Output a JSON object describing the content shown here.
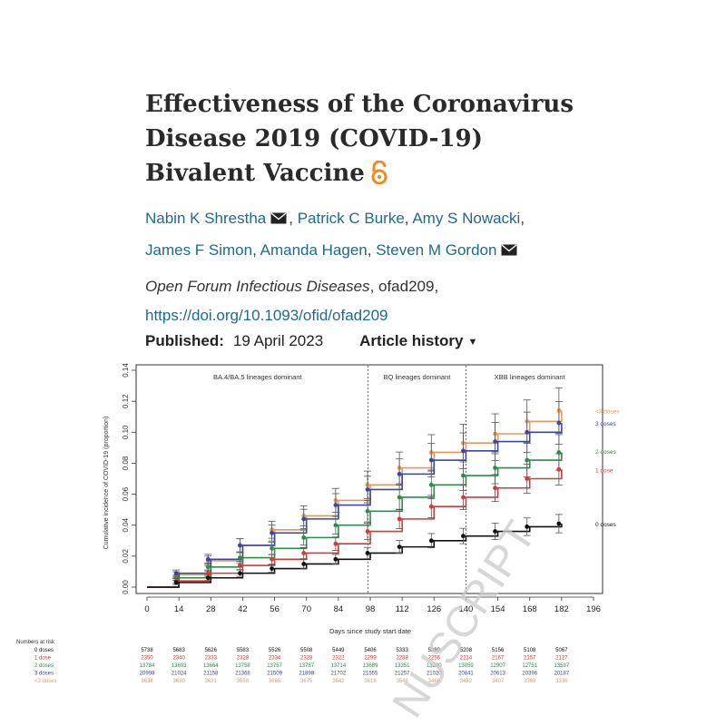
{
  "article": {
    "title_line1": "Effectiveness of the Coronavirus",
    "title_line2": "Disease 2019 (COVID-19)",
    "title_line3": "Bivalent Vaccine",
    "open_access_icon": "open-access-lock-icon",
    "open_access_color": "#f08a24",
    "link_color": "#1d6a8f",
    "authors": [
      {
        "name": "Nabin K Shrestha",
        "corresponding": true
      },
      {
        "name": "Patrick C Burke",
        "corresponding": false
      },
      {
        "name": "Amy S Nowacki",
        "corresponding": false
      },
      {
        "name": "James F Simon",
        "corresponding": false
      },
      {
        "name": "Amanda Hagen",
        "corresponding": false
      },
      {
        "name": "Steven M Gordon",
        "corresponding": true
      }
    ],
    "journal": "Open Forum Infectious Diseases",
    "article_id": ", ofad209,",
    "doi": "https://doi.org/10.1093/ofid/ofad209",
    "published_label": "Published:",
    "published_date": "19 April 2023",
    "article_history_label": "Article history",
    "watermark": "NUSCRIPT"
  },
  "chart_data": {
    "type": "line",
    "title": "",
    "xlabel": "Days since study start date",
    "ylabel": "Cumulative incidence of COVID-19 (proportion)",
    "xlim": [
      0,
      196
    ],
    "ylim": [
      0,
      0.14
    ],
    "xticks": [
      0,
      14,
      28,
      42,
      56,
      70,
      84,
      98,
      112,
      126,
      140,
      154,
      168,
      182,
      196
    ],
    "yticks": [
      0.0,
      0.02,
      0.04,
      0.06,
      0.08,
      0.1,
      0.12,
      0.14
    ],
    "grid": false,
    "periods": [
      {
        "label": "BA.4/BA.5 lineages dominant",
        "start": 0,
        "end": 97
      },
      {
        "label": "BQ lineages dominant",
        "start": 97,
        "end": 140
      },
      {
        "label": "XBB lineages dominant",
        "start": 140,
        "end": 196
      }
    ],
    "period_boundaries": [
      97,
      140
    ],
    "series": [
      {
        "name": "<3 doses",
        "color": "#e8975a",
        "x": [
          0,
          14,
          28,
          42,
          56,
          70,
          84,
          98,
          112,
          126,
          140,
          154,
          168,
          182
        ],
        "y": [
          0,
          0.008,
          0.017,
          0.027,
          0.037,
          0.046,
          0.056,
          0.066,
          0.077,
          0.087,
          0.093,
          0.099,
          0.107,
          0.114
        ],
        "end_y": 0.114
      },
      {
        "name": "3 doses",
        "color": "#3a45a8",
        "x": [
          0,
          14,
          28,
          42,
          56,
          70,
          84,
          98,
          112,
          126,
          140,
          154,
          168,
          182
        ],
        "y": [
          0,
          0.009,
          0.018,
          0.027,
          0.035,
          0.044,
          0.053,
          0.063,
          0.073,
          0.082,
          0.088,
          0.094,
          0.1,
          0.106
        ],
        "end_y": 0.106
      },
      {
        "name": "2 doses",
        "color": "#2e8b4a",
        "x": [
          0,
          14,
          28,
          42,
          56,
          70,
          84,
          98,
          112,
          126,
          140,
          154,
          168,
          182
        ],
        "y": [
          0,
          0.006,
          0.013,
          0.019,
          0.025,
          0.032,
          0.04,
          0.049,
          0.058,
          0.066,
          0.072,
          0.077,
          0.082,
          0.087
        ],
        "end_y": 0.088
      },
      {
        "name": "1 dose",
        "color": "#d33a36",
        "x": [
          0,
          14,
          28,
          42,
          56,
          70,
          84,
          98,
          112,
          126,
          140,
          154,
          168,
          182
        ],
        "y": [
          0,
          0.004,
          0.009,
          0.014,
          0.018,
          0.022,
          0.028,
          0.036,
          0.044,
          0.052,
          0.058,
          0.064,
          0.07,
          0.076
        ],
        "end_y": 0.076
      },
      {
        "name": "0 doses",
        "color": "#111111",
        "x": [
          0,
          14,
          28,
          42,
          56,
          70,
          84,
          98,
          112,
          126,
          140,
          154,
          168,
          182
        ],
        "y": [
          0,
          0.003,
          0.006,
          0.009,
          0.012,
          0.015,
          0.018,
          0.022,
          0.026,
          0.03,
          0.033,
          0.036,
          0.039,
          0.041
        ],
        "end_y": 0.041
      }
    ],
    "risk_table": {
      "title": "Numbers at risk",
      "rows": [
        {
          "label": "0 doses",
          "color": "#111111",
          "values": [
            "5738",
            "5683",
            "5626",
            "5583",
            "5526",
            "5508",
            "5449",
            "5406",
            "5333",
            "5280",
            "5208",
            "5156",
            "5108",
            "5067"
          ]
        },
        {
          "label": "1 dose",
          "color": "#d33a36",
          "values": [
            "2350",
            "2340",
            "2333",
            "2328",
            "2334",
            "2328",
            "2322",
            "2299",
            "2288",
            "2256",
            "2214",
            "2167",
            "2157",
            "2127"
          ]
        },
        {
          "label": "2 doses",
          "color": "#2e8b4a",
          "values": [
            "13784",
            "13693",
            "13664",
            "13758",
            "13757",
            "13787",
            "13714",
            "13689",
            "13351",
            "13200",
            "13059",
            "12907",
            "12751",
            "13597"
          ]
        },
        {
          "label": "3 doses",
          "color": "#3a45a8",
          "values": [
            "20998",
            "21024",
            "21158",
            "21368",
            "21509",
            "21898",
            "21702",
            "21555",
            "21257",
            "21020",
            "20841",
            "20613",
            "20396",
            "20187"
          ]
        },
        {
          "label": "<3 doses",
          "color": "#e8975a",
          "values": [
            "3634",
            "3630",
            "3631",
            "3658",
            "3665",
            "3675",
            "3642",
            "3616",
            "3546",
            "3466",
            "3452",
            "3407",
            "3368",
            "3336"
          ]
        }
      ]
    }
  }
}
